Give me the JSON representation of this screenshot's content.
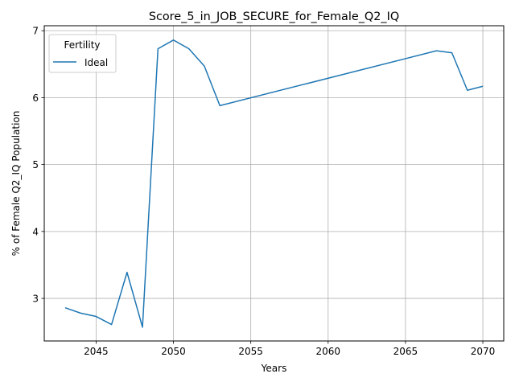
{
  "chart_data": {
    "type": "line",
    "title": "Score_5_in_JOB_SECURE_for_Female_Q2_IQ",
    "xlabel": "Years",
    "ylabel": "% of Female Q2_IQ Population",
    "xlim": [
      2041.65,
      2071.35
    ],
    "ylim": [
      2.364,
      7.074
    ],
    "xticks": [
      2045,
      2050,
      2055,
      2060,
      2065,
      2070
    ],
    "yticks": [
      3,
      4,
      5,
      6,
      7
    ],
    "grid": true,
    "legend": {
      "title": "Fertility",
      "placement": "top-left"
    },
    "series": [
      {
        "name": "Ideal",
        "color": "#1f77b4",
        "x": [
          2043,
          2044,
          2045,
          2046,
          2047,
          2048,
          2049,
          2050,
          2051,
          2052,
          2053,
          2067,
          2068,
          2069,
          2070
        ],
        "y": [
          2.86,
          2.78,
          2.73,
          2.61,
          3.39,
          2.57,
          6.73,
          6.86,
          6.73,
          6.47,
          5.88,
          6.7,
          6.67,
          6.11,
          6.17
        ]
      }
    ]
  }
}
